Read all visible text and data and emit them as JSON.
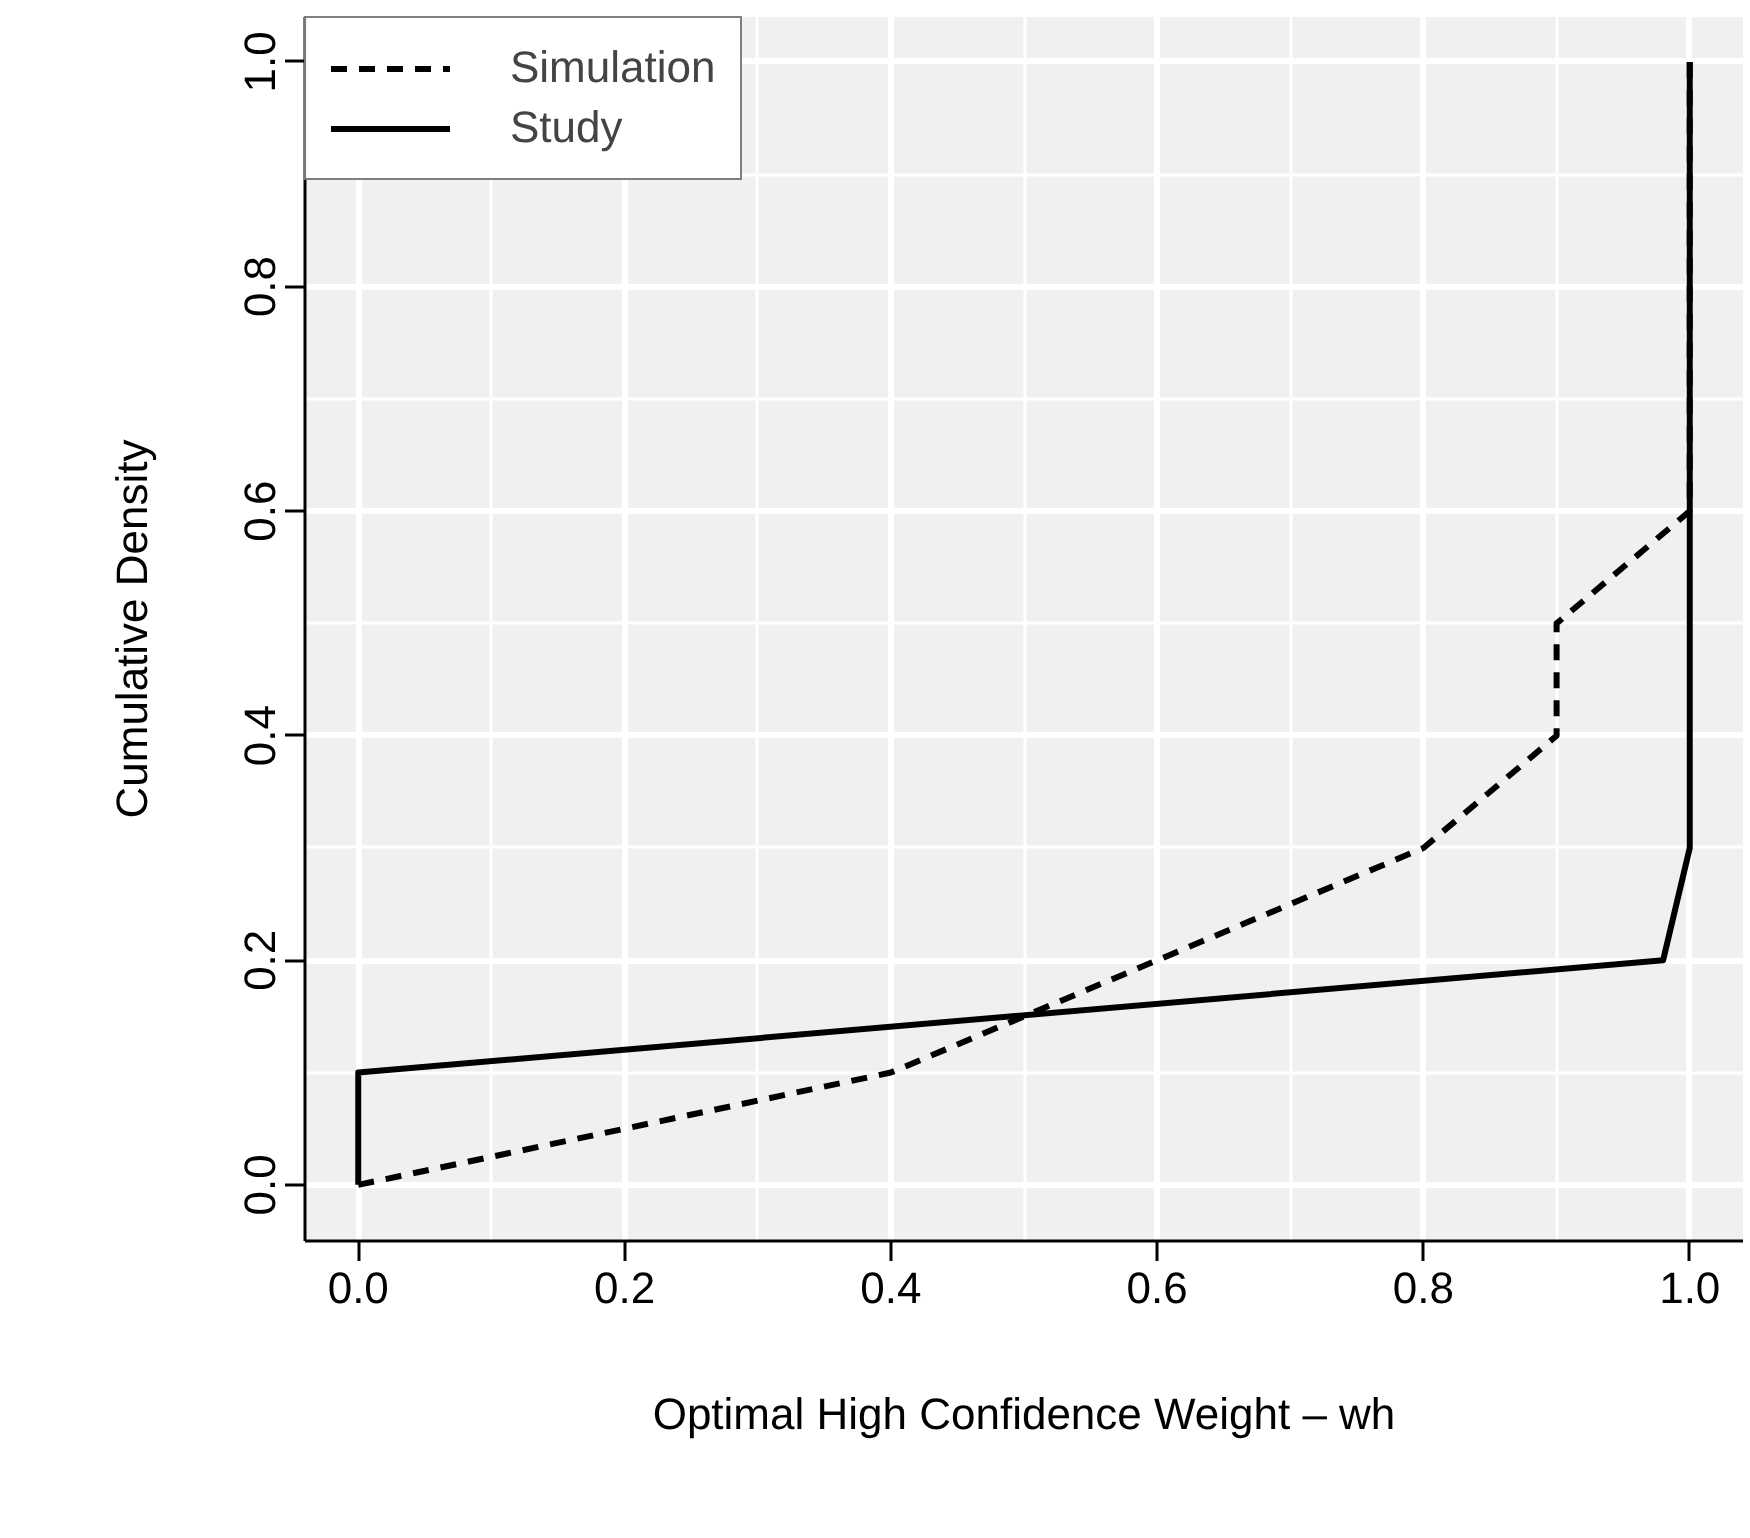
{
  "chart_data": {
    "type": "line",
    "xlabel": "Optimal High Confidence Weight – wh",
    "ylabel": "Cumulative Density",
    "series": [
      {
        "name": "Simulation",
        "color": "#000000",
        "line_style": "dashed",
        "x": [
          0.0,
          0.4,
          0.6,
          0.8,
          0.9,
          0.9,
          1.0,
          1.0
        ],
        "values": [
          0.0,
          0.1,
          0.2,
          0.3,
          0.4,
          0.5,
          0.6,
          1.0
        ]
      },
      {
        "name": "Study",
        "color": "#000000",
        "line_style": "solid",
        "x": [
          0.0,
          0.0,
          0.98,
          1.0,
          1.0
        ],
        "values": [
          0.0,
          0.1,
          0.2,
          0.3,
          1.0
        ]
      }
    ],
    "xlim": [
      -0.04,
      1.04
    ],
    "ylim": [
      -0.05,
      1.04
    ],
    "xticks": [
      {
        "value": 0,
        "label": "0.0"
      },
      0.2,
      0.4,
      0.6,
      0.8,
      {
        "value": 1,
        "label": "1.0"
      }
    ],
    "yticks": [
      {
        "value": 0,
        "label": "0.0"
      },
      0.2,
      0.4,
      0.6,
      0.8,
      {
        "value": 1,
        "label": "1.0"
      }
    ],
    "grid": true,
    "legend": "top left"
  }
}
